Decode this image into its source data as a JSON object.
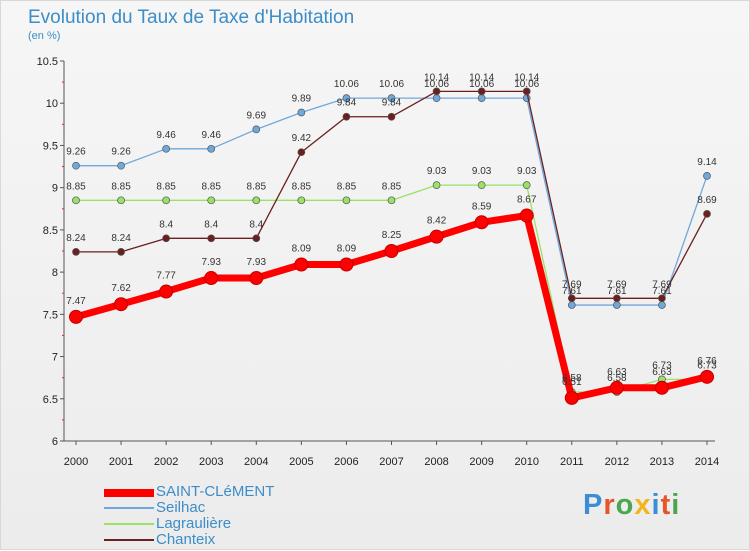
{
  "header": {
    "title": "Evolution du Taux de Taxe d'Habitation",
    "unit": "(en %)"
  },
  "brand": {
    "text": "Proxiti",
    "colors": [
      "#3b8ed6",
      "#e8542a",
      "#4ca64c",
      "#f2b51c",
      "#3b8ed6",
      "#e8542a",
      "#4ca64c"
    ]
  },
  "chart_data": {
    "type": "line",
    "title": "Evolution du Taux de Taxe d'Habitation",
    "ylabel": "(en %)",
    "xlabel": "",
    "ylim": [
      6,
      10.5
    ],
    "yticks": [
      "6",
      "6.5",
      "7",
      "7.5",
      "8",
      "8.5",
      "9",
      "9.5",
      "10",
      "10.5"
    ],
    "categories": [
      "2000",
      "2001",
      "2002",
      "2003",
      "2004",
      "2005",
      "2006",
      "2007",
      "2008",
      "2009",
      "2010",
      "2011",
      "2012",
      "2013",
      "2014"
    ],
    "grid": false,
    "legend": "bottom-left",
    "series": [
      {
        "name": "SAINT-CLéMENT",
        "color": "#ff0000",
        "values": [
          7.47,
          7.62,
          7.77,
          7.93,
          7.93,
          8.09,
          8.09,
          8.25,
          8.42,
          8.59,
          8.67,
          6.51,
          6.63,
          6.63,
          6.76
        ]
      },
      {
        "name": "Seilhac",
        "color": "#6fa8dc",
        "values": [
          9.26,
          9.26,
          9.46,
          9.46,
          9.69,
          9.89,
          10.06,
          10.06,
          10.06,
          10.06,
          10.06,
          7.61,
          7.61,
          7.61,
          9.14
        ]
      },
      {
        "name": "Lagraulière",
        "color": "#99e266",
        "values": [
          8.85,
          8.85,
          8.85,
          8.85,
          8.85,
          8.85,
          8.85,
          8.85,
          9.03,
          9.03,
          9.03,
          6.58,
          6.58,
          6.73,
          6.73
        ]
      },
      {
        "name": "Chanteix",
        "color": "#6b1f1f",
        "values": [
          8.24,
          8.24,
          8.4,
          8.4,
          8.4,
          9.42,
          9.84,
          9.84,
          10.14,
          10.14,
          10.14,
          7.69,
          7.69,
          7.69,
          8.69
        ]
      }
    ]
  }
}
